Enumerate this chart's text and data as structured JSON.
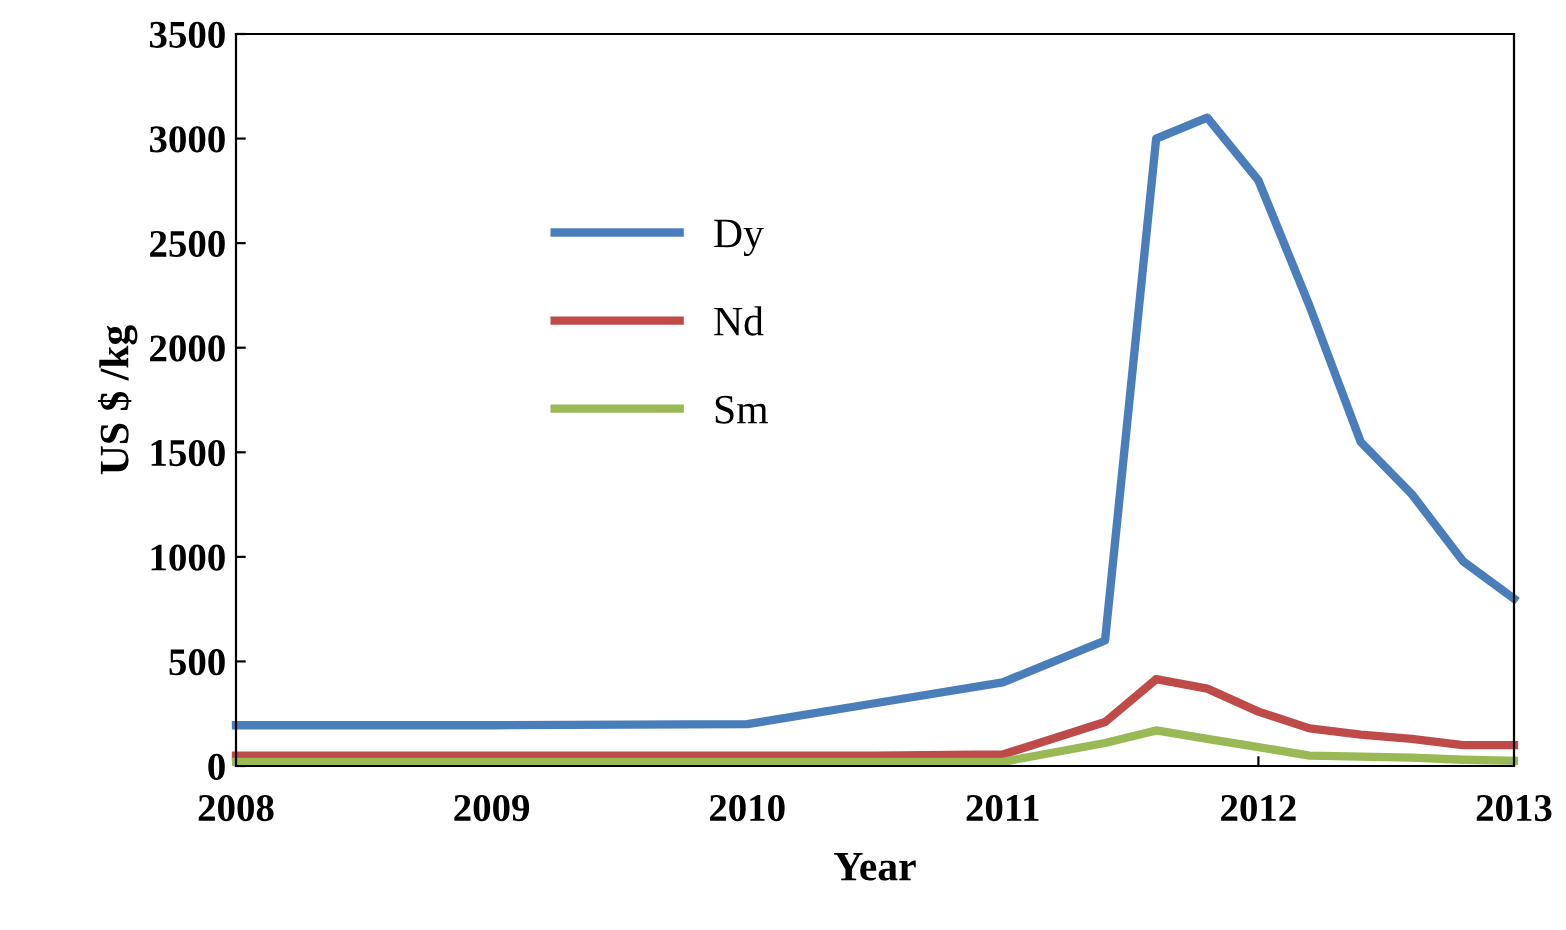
{
  "chart_data": {
    "type": "line",
    "xlabel": "Year",
    "ylabel": "US $ /kg",
    "x": [
      2008,
      2009,
      2010,
      2010.5,
      2011,
      2011.4,
      2011.6,
      2011.8,
      2012,
      2012.2,
      2012.4,
      2012.6,
      2012.8,
      2013
    ],
    "series": [
      {
        "name": "Dy",
        "color": "#4a7ebb",
        "values": [
          195,
          195,
          200,
          300,
          400,
          600,
          3000,
          3100,
          2800,
          2200,
          1550,
          1300,
          980,
          800
        ]
      },
      {
        "name": "Nd",
        "color": "#be4b48",
        "values": [
          50,
          50,
          50,
          50,
          55,
          210,
          415,
          370,
          260,
          180,
          150,
          130,
          100,
          100
        ]
      },
      {
        "name": "Sm",
        "color": "#98b954",
        "values": [
          20,
          20,
          20,
          20,
          20,
          110,
          170,
          130,
          90,
          50,
          45,
          40,
          30,
          25
        ]
      }
    ],
    "xlim": [
      2008,
      2013
    ],
    "xticks": [
      2008,
      2009,
      2010,
      2011,
      2012,
      2013
    ],
    "ylim": [
      0,
      3500
    ],
    "yticks": [
      0,
      500,
      1000,
      1500,
      2000,
      2500,
      3000,
      3500
    ],
    "grid": false,
    "legend": "top left",
    "marker": "none",
    "line_style": "solid"
  }
}
